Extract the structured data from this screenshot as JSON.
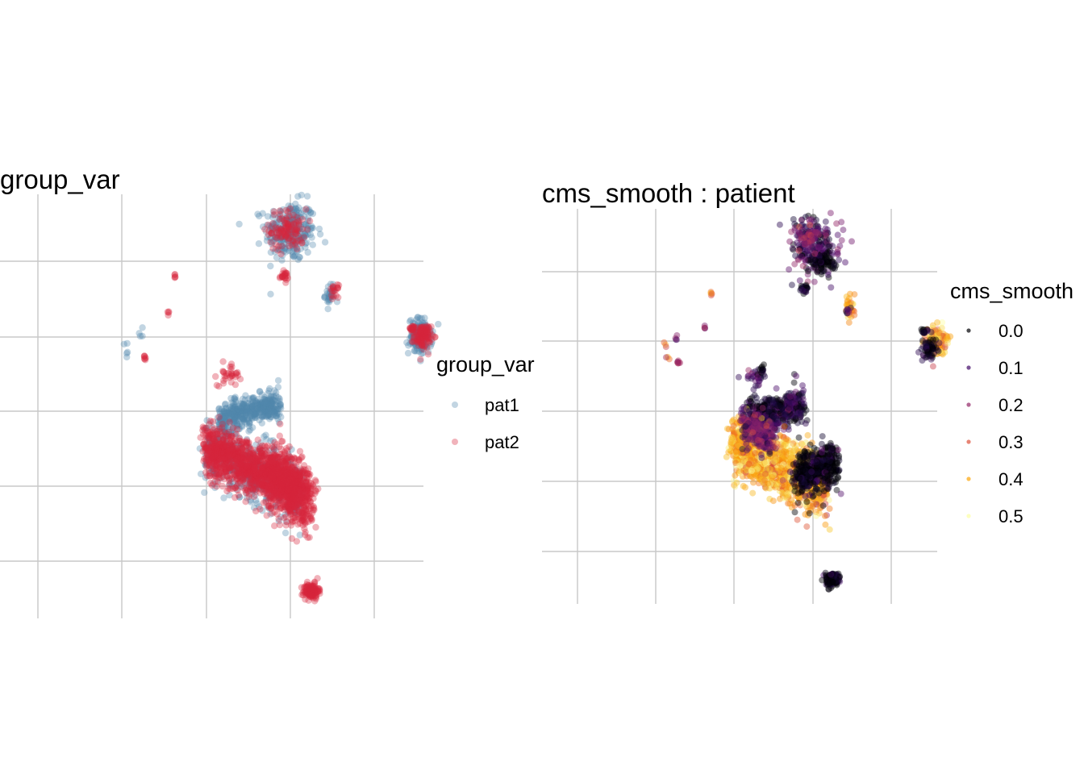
{
  "chart_data": [
    {
      "type": "scatter",
      "title": "group_var",
      "legend": {
        "title": "group_var",
        "position": "right",
        "entries": [
          {
            "name": "pat1",
            "color": "#4f88ad"
          },
          {
            "name": "pat2",
            "color": "#d7263d"
          }
        ]
      },
      "grid": true,
      "xlim": [
        -4.2,
        5.8
      ],
      "ylim": [
        -3.8,
        1.9
      ],
      "clusters": [
        {
          "group": "pat1",
          "cx": 2.0,
          "cy": 1.4,
          "sx": 0.3,
          "sy": 0.2,
          "n": 260
        },
        {
          "group": "pat2",
          "cx": 1.95,
          "cy": 1.42,
          "sx": 0.22,
          "sy": 0.14,
          "n": 110
        },
        {
          "group": "pat2",
          "cx": 1.85,
          "cy": 0.8,
          "sx": 0.05,
          "sy": 0.03,
          "n": 22
        },
        {
          "group": "pat2",
          "cx": -0.75,
          "cy": 0.8,
          "sx": 0.02,
          "sy": 0.02,
          "n": 5
        },
        {
          "group": "pat2",
          "cx": -0.9,
          "cy": 0.3,
          "sx": 0.02,
          "sy": 0.02,
          "n": 4
        },
        {
          "group": "pat1",
          "cx": 2.95,
          "cy": 0.55,
          "sx": 0.06,
          "sy": 0.08,
          "n": 30
        },
        {
          "group": "pat2",
          "cx": 3.05,
          "cy": 0.6,
          "sx": 0.05,
          "sy": 0.04,
          "n": 18
        },
        {
          "group": "pat1",
          "cx": 5.1,
          "cy": 0.0,
          "sx": 0.14,
          "sy": 0.12,
          "n": 140
        },
        {
          "group": "pat2",
          "cx": 5.15,
          "cy": 0.0,
          "sx": 0.1,
          "sy": 0.08,
          "n": 120
        },
        {
          "group": "pat2",
          "cx": 4.9,
          "cy": 0.1,
          "sx": 0.05,
          "sy": 0.02,
          "n": 14
        },
        {
          "group": "pat1",
          "cx": -1.55,
          "cy": 0.05,
          "sx": 0.05,
          "sy": 0.03,
          "n": 4
        },
        {
          "group": "pat1",
          "cx": -1.9,
          "cy": -0.15,
          "sx": 0.04,
          "sy": 0.08,
          "n": 5
        },
        {
          "group": "pat2",
          "cx": -1.45,
          "cy": -0.3,
          "sx": 0.03,
          "sy": 0.02,
          "n": 7
        },
        {
          "group": "pat2",
          "cx": 0.55,
          "cy": -0.5,
          "sx": 0.14,
          "sy": 0.08,
          "n": 32
        }
      ],
      "bands": [
        {
          "group": "pat1",
          "x0": 0.3,
          "y0": -1.1,
          "x1": 1.75,
          "y1": -0.9,
          "w": 0.1,
          "n": 420
        },
        {
          "group": "pat1",
          "x0": 0.0,
          "y0": -1.5,
          "x1": 2.3,
          "y1": -2.1,
          "w": 0.2,
          "n": 600
        },
        {
          "group": "pat2",
          "x0": 0.0,
          "y0": -1.48,
          "x1": 2.3,
          "y1": -2.08,
          "w": 0.17,
          "n": 1300
        },
        {
          "group": "pat2",
          "x0": 1.5,
          "y0": -1.8,
          "x1": 2.5,
          "y1": -2.25,
          "w": 0.22,
          "n": 500
        }
      ],
      "extra": [
        {
          "group": "pat2",
          "cx": 2.5,
          "cy": -3.4,
          "sx": 0.09,
          "sy": 0.05,
          "n": 140
        }
      ]
    },
    {
      "type": "scatter",
      "title": "cms_smooth : patient",
      "legend": {
        "title": "cms_smooth",
        "position": "right",
        "colorscale": "inferno",
        "entries": [
          {
            "name": "0.0",
            "color": "#000004"
          },
          {
            "name": "0.1",
            "color": "#420a68"
          },
          {
            "name": "0.2",
            "color": "#932667"
          },
          {
            "name": "0.3",
            "color": "#dd513a"
          },
          {
            "name": "0.4",
            "color": "#fca50a"
          },
          {
            "name": "0.5",
            "color": "#fcffa4"
          }
        ]
      },
      "grid": true,
      "xlim": [
        -4.2,
        5.8
      ],
      "ylim": [
        -3.8,
        1.9
      ],
      "clusters": [
        {
          "v": 0.1,
          "cx": 2.0,
          "cy": 1.4,
          "sx": 0.3,
          "sy": 0.2,
          "n": 220
        },
        {
          "v": 0.0,
          "cx": 2.25,
          "cy": 1.15,
          "sx": 0.18,
          "sy": 0.08,
          "n": 90
        },
        {
          "v": 0.2,
          "cx": 1.9,
          "cy": 1.5,
          "sx": 0.15,
          "sy": 0.12,
          "n": 40
        },
        {
          "v": 0.0,
          "cx": 1.8,
          "cy": 0.75,
          "sx": 0.05,
          "sy": 0.03,
          "n": 22
        },
        {
          "v": 0.35,
          "cx": -0.6,
          "cy": 0.7,
          "sx": 0.02,
          "sy": 0.02,
          "n": 5
        },
        {
          "v": 0.2,
          "cx": -0.75,
          "cy": 0.2,
          "sx": 0.02,
          "sy": 0.02,
          "n": 4
        },
        {
          "v": 0.38,
          "cx": 2.95,
          "cy": 0.5,
          "sx": 0.06,
          "sy": 0.08,
          "n": 34
        },
        {
          "v": 0.1,
          "cx": 2.9,
          "cy": 0.45,
          "sx": 0.03,
          "sy": 0.03,
          "n": 8
        },
        {
          "v": 0.4,
          "cx": 5.15,
          "cy": 0.0,
          "sx": 0.12,
          "sy": 0.1,
          "n": 140
        },
        {
          "v": 0.0,
          "cx": 5.0,
          "cy": -0.1,
          "sx": 0.1,
          "sy": 0.08,
          "n": 70
        },
        {
          "v": 0.0,
          "cx": 4.85,
          "cy": 0.15,
          "sx": 0.05,
          "sy": 0.02,
          "n": 14
        },
        {
          "v": 0.2,
          "cx": -1.5,
          "cy": 0.05,
          "sx": 0.03,
          "sy": 0.03,
          "n": 4
        },
        {
          "v": 0.35,
          "cx": -1.75,
          "cy": -0.15,
          "sx": 0.04,
          "sy": 0.08,
          "n": 6
        },
        {
          "v": 0.25,
          "cx": -1.45,
          "cy": -0.3,
          "sx": 0.03,
          "sy": 0.02,
          "n": 7
        },
        {
          "v": 0.1,
          "cx": 0.55,
          "cy": -0.5,
          "sx": 0.14,
          "sy": 0.08,
          "n": 32
        },
        {
          "v": 0.0,
          "cx": 0.7,
          "cy": -0.42,
          "sx": 0.04,
          "sy": 0.03,
          "n": 8
        }
      ],
      "bands": [
        {
          "v": 0.05,
          "x0": 0.3,
          "y0": -1.1,
          "x1": 1.75,
          "y1": -0.9,
          "w": 0.12,
          "n": 480
        },
        {
          "v": 0.4,
          "x0": 0.0,
          "y0": -1.48,
          "x1": 2.3,
          "y1": -2.08,
          "w": 0.2,
          "n": 1500
        },
        {
          "v": 0.0,
          "x0": 1.6,
          "y0": -1.9,
          "x1": 2.6,
          "y1": -1.75,
          "w": 0.15,
          "n": 460
        },
        {
          "v": 0.15,
          "x0": 0.2,
          "y0": -1.2,
          "x1": 1.0,
          "y1": -1.4,
          "w": 0.12,
          "n": 200
        }
      ],
      "extra": [
        {
          "v": 0.0,
          "cx": 2.5,
          "cy": -3.4,
          "sx": 0.09,
          "sy": 0.05,
          "n": 140
        }
      ]
    }
  ]
}
